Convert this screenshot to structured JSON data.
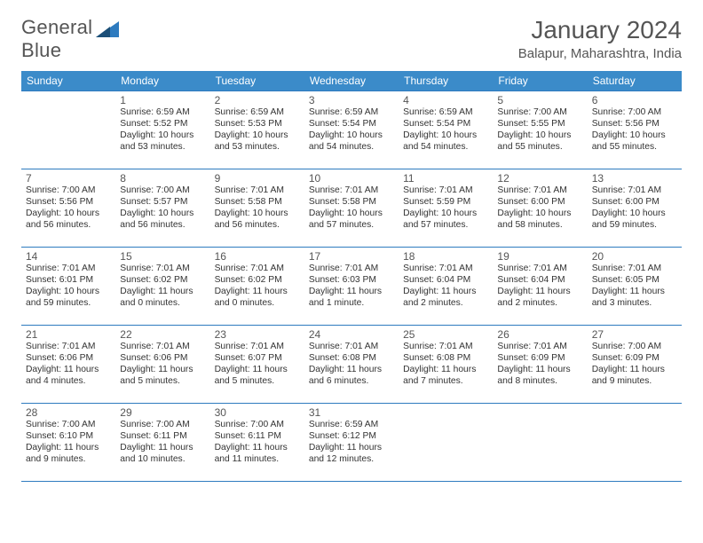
{
  "brand": {
    "word1": "General",
    "word2": "Blue"
  },
  "header": {
    "title": "January 2024",
    "location": "Balapur, Maharashtra, India"
  },
  "style": {
    "header_bg": "#3b8bc9",
    "border_color": "#2e7bbf",
    "text_color": "#333333",
    "page_bg": "#ffffff",
    "daynum_fontsize": 12,
    "cell_fontsize": 10.3,
    "title_fontsize": 28
  },
  "weekdays": [
    "Sunday",
    "Monday",
    "Tuesday",
    "Wednesday",
    "Thursday",
    "Friday",
    "Saturday"
  ],
  "weeks": [
    [
      null,
      {
        "d": "1",
        "sr": "6:59 AM",
        "ss": "5:52 PM",
        "dl": "10 hours and 53 minutes."
      },
      {
        "d": "2",
        "sr": "6:59 AM",
        "ss": "5:53 PM",
        "dl": "10 hours and 53 minutes."
      },
      {
        "d": "3",
        "sr": "6:59 AM",
        "ss": "5:54 PM",
        "dl": "10 hours and 54 minutes."
      },
      {
        "d": "4",
        "sr": "6:59 AM",
        "ss": "5:54 PM",
        "dl": "10 hours and 54 minutes."
      },
      {
        "d": "5",
        "sr": "7:00 AM",
        "ss": "5:55 PM",
        "dl": "10 hours and 55 minutes."
      },
      {
        "d": "6",
        "sr": "7:00 AM",
        "ss": "5:56 PM",
        "dl": "10 hours and 55 minutes."
      }
    ],
    [
      {
        "d": "7",
        "sr": "7:00 AM",
        "ss": "5:56 PM",
        "dl": "10 hours and 56 minutes."
      },
      {
        "d": "8",
        "sr": "7:00 AM",
        "ss": "5:57 PM",
        "dl": "10 hours and 56 minutes."
      },
      {
        "d": "9",
        "sr": "7:01 AM",
        "ss": "5:58 PM",
        "dl": "10 hours and 56 minutes."
      },
      {
        "d": "10",
        "sr": "7:01 AM",
        "ss": "5:58 PM",
        "dl": "10 hours and 57 minutes."
      },
      {
        "d": "11",
        "sr": "7:01 AM",
        "ss": "5:59 PM",
        "dl": "10 hours and 57 minutes."
      },
      {
        "d": "12",
        "sr": "7:01 AM",
        "ss": "6:00 PM",
        "dl": "10 hours and 58 minutes."
      },
      {
        "d": "13",
        "sr": "7:01 AM",
        "ss": "6:00 PM",
        "dl": "10 hours and 59 minutes."
      }
    ],
    [
      {
        "d": "14",
        "sr": "7:01 AM",
        "ss": "6:01 PM",
        "dl": "10 hours and 59 minutes."
      },
      {
        "d": "15",
        "sr": "7:01 AM",
        "ss": "6:02 PM",
        "dl": "11 hours and 0 minutes."
      },
      {
        "d": "16",
        "sr": "7:01 AM",
        "ss": "6:02 PM",
        "dl": "11 hours and 0 minutes."
      },
      {
        "d": "17",
        "sr": "7:01 AM",
        "ss": "6:03 PM",
        "dl": "11 hours and 1 minute."
      },
      {
        "d": "18",
        "sr": "7:01 AM",
        "ss": "6:04 PM",
        "dl": "11 hours and 2 minutes."
      },
      {
        "d": "19",
        "sr": "7:01 AM",
        "ss": "6:04 PM",
        "dl": "11 hours and 2 minutes."
      },
      {
        "d": "20",
        "sr": "7:01 AM",
        "ss": "6:05 PM",
        "dl": "11 hours and 3 minutes."
      }
    ],
    [
      {
        "d": "21",
        "sr": "7:01 AM",
        "ss": "6:06 PM",
        "dl": "11 hours and 4 minutes."
      },
      {
        "d": "22",
        "sr": "7:01 AM",
        "ss": "6:06 PM",
        "dl": "11 hours and 5 minutes."
      },
      {
        "d": "23",
        "sr": "7:01 AM",
        "ss": "6:07 PM",
        "dl": "11 hours and 5 minutes."
      },
      {
        "d": "24",
        "sr": "7:01 AM",
        "ss": "6:08 PM",
        "dl": "11 hours and 6 minutes."
      },
      {
        "d": "25",
        "sr": "7:01 AM",
        "ss": "6:08 PM",
        "dl": "11 hours and 7 minutes."
      },
      {
        "d": "26",
        "sr": "7:01 AM",
        "ss": "6:09 PM",
        "dl": "11 hours and 8 minutes."
      },
      {
        "d": "27",
        "sr": "7:00 AM",
        "ss": "6:09 PM",
        "dl": "11 hours and 9 minutes."
      }
    ],
    [
      {
        "d": "28",
        "sr": "7:00 AM",
        "ss": "6:10 PM",
        "dl": "11 hours and 9 minutes."
      },
      {
        "d": "29",
        "sr": "7:00 AM",
        "ss": "6:11 PM",
        "dl": "11 hours and 10 minutes."
      },
      {
        "d": "30",
        "sr": "7:00 AM",
        "ss": "6:11 PM",
        "dl": "11 hours and 11 minutes."
      },
      {
        "d": "31",
        "sr": "6:59 AM",
        "ss": "6:12 PM",
        "dl": "11 hours and 12 minutes."
      },
      null,
      null,
      null
    ]
  ]
}
